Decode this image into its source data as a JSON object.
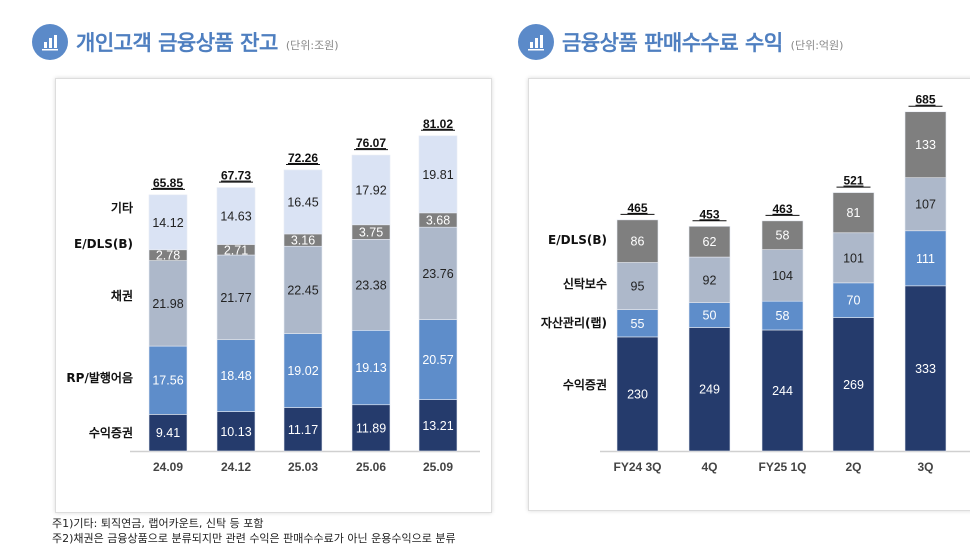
{
  "left_title": {
    "text": "개인고객 금융상품 잔고",
    "unit": "(단위:조원)",
    "icon": "bar-chart-icon"
  },
  "right_title": {
    "text": "금융상품 판매수수료 수익",
    "unit": "(단위:억원)",
    "icon": "bar-chart-icon"
  },
  "footnotes": [
    "주1)기타: 퇴직연금, 랩어카운트, 신탁 등 포함",
    "주2)채권은 금융상품으로 분류되지만 관련 수익은 판매수수료가 아닌 운용수익으로 분류"
  ],
  "chart_data": [
    {
      "type": "bar",
      "stacked": true,
      "categories": [
        "24.09",
        "24.12",
        "25.03",
        "25.06",
        "25.09"
      ],
      "totals": [
        "65.85",
        "67.73",
        "72.26",
        "76.07",
        "81.02"
      ],
      "series": [
        {
          "name": "수익증권",
          "values": [
            9.41,
            10.13,
            11.17,
            11.89,
            13.21
          ],
          "color": "#253b6c",
          "label_color": "#ffffff"
        },
        {
          "name": "RP/발행어음",
          "values": [
            17.56,
            18.48,
            19.02,
            19.13,
            20.57
          ],
          "color": "#5e8dca",
          "label_color": "#ffffff"
        },
        {
          "name": "채권",
          "values": [
            21.98,
            21.77,
            22.45,
            23.38,
            23.76
          ],
          "color": "#adb8ca",
          "label_color": "#222222"
        },
        {
          "name": "E/DLS(B)",
          "values": [
            2.78,
            2.71,
            3.16,
            3.75,
            3.68
          ],
          "color": "#7f7f7f",
          "label_color": "#ffffff"
        },
        {
          "name": "기타",
          "values": [
            14.12,
            14.63,
            16.45,
            17.92,
            19.81
          ],
          "color": "#dae3f4",
          "label_color": "#222222"
        }
      ]
    },
    {
      "type": "bar",
      "stacked": true,
      "categories": [
        "FY24 3Q",
        "4Q",
        "FY25 1Q",
        "2Q",
        "3Q"
      ],
      "totals": [
        "465",
        "453",
        "463",
        "521",
        "685"
      ],
      "series": [
        {
          "name": "수익증권",
          "values": [
            230,
            249,
            244,
            269,
            333
          ],
          "color": "#253b6c",
          "label_color": "#ffffff"
        },
        {
          "name": "자산관리(랩)",
          "values": [
            55,
            50,
            58,
            70,
            111
          ],
          "color": "#5e8dca",
          "label_color": "#ffffff"
        },
        {
          "name": "신탁보수",
          "values": [
            95,
            92,
            104,
            101,
            107
          ],
          "color": "#adb8ca",
          "label_color": "#222222"
        },
        {
          "name": "E/DLS(B)",
          "values": [
            86,
            62,
            58,
            81,
            133
          ],
          "color": "#7f7f7f",
          "label_color": "#ffffff"
        }
      ]
    }
  ]
}
